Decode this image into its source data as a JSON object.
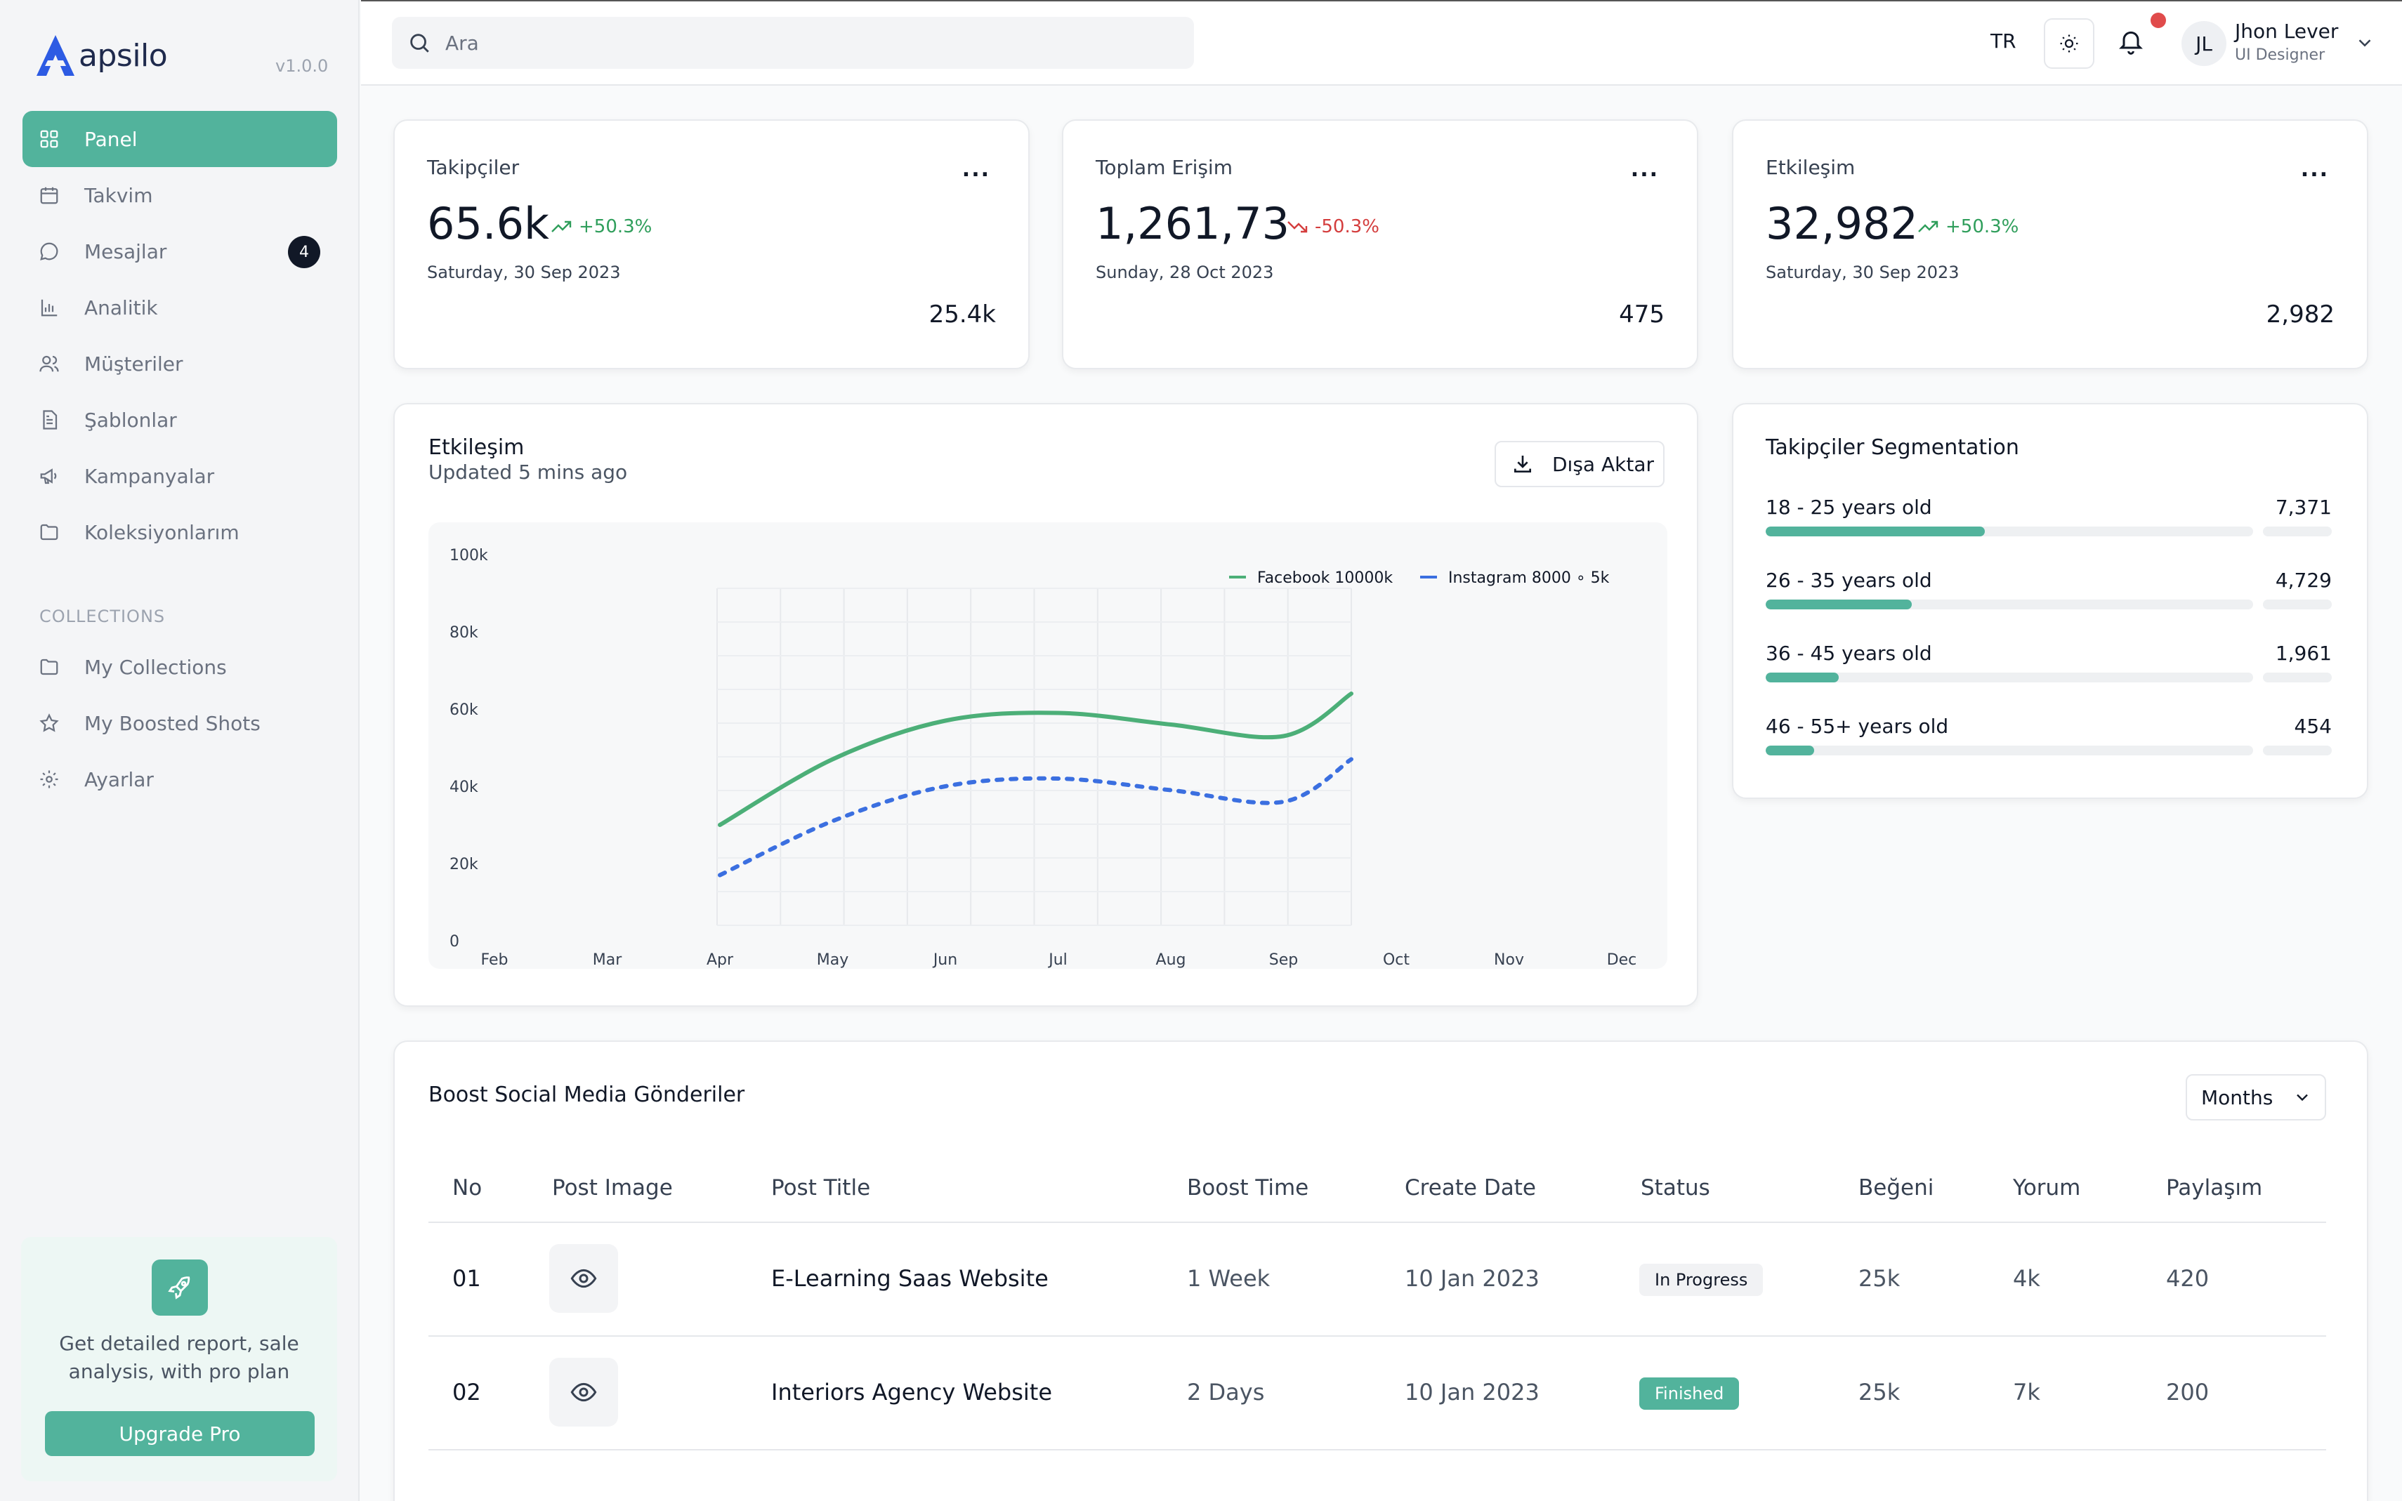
{
  "brand": {
    "name": "apsilo",
    "version": "v1.0.0",
    "accent": "#52b39c",
    "logo_color": "#2d5be3"
  },
  "sidebar": {
    "items": [
      {
        "label": "Panel",
        "icon": "grid-icon",
        "active": true
      },
      {
        "label": "Takvim",
        "icon": "calendar-icon"
      },
      {
        "label": "Mesajlar",
        "icon": "message-icon",
        "badge": "4"
      },
      {
        "label": "Analitik",
        "icon": "bar-chart-icon"
      },
      {
        "label": "Müşteriler",
        "icon": "users-icon"
      },
      {
        "label": "Şablonlar",
        "icon": "document-icon"
      },
      {
        "label": "Kampanyalar",
        "icon": "megaphone-icon"
      },
      {
        "label": "Koleksiyonlarım",
        "icon": "folder-icon"
      }
    ],
    "section_label": "COLLECTIONS",
    "collections": [
      {
        "label": "My Collections",
        "icon": "folder-icon"
      },
      {
        "label": "My Boosted Shots",
        "icon": "star-icon"
      },
      {
        "label": "Ayarlar",
        "icon": "gear-icon"
      }
    ],
    "promo": {
      "text": "Get detailed report, sale analysis, with pro plan",
      "button": "Upgrade Pro",
      "icon": "rocket-icon"
    }
  },
  "header": {
    "search_placeholder": "Ara",
    "language": "TR",
    "user": {
      "initials": "JL",
      "name": "Jhon Lever",
      "role": "UI Designer"
    }
  },
  "stats": [
    {
      "label": "Takipçiler",
      "more": "...",
      "value": "65.6k",
      "change": "+50.3%",
      "trend": "up",
      "date": "Saturday, 30 Sep 2023",
      "sub": "25.4k"
    },
    {
      "label": "Toplam Erişim",
      "more": "...",
      "value": "1,261,73",
      "change": "-50.3%",
      "trend": "down",
      "date": "Sunday, 28 Oct 2023",
      "sub": "475"
    },
    {
      "label": "Etkileşim",
      "more": "...",
      "value": "32,982",
      "change": "+50.3%",
      "trend": "up",
      "date": "Saturday, 30 Sep 2023",
      "sub": "2,982"
    }
  ],
  "engagement": {
    "title": "Etkileşim",
    "updated": "Updated 5 mins ago",
    "export_label": "Dışa Aktar"
  },
  "chart_data": {
    "type": "line",
    "x": [
      "Feb",
      "Mar",
      "Apr",
      "May",
      "Jun",
      "Jul",
      "Aug",
      "Sep",
      "Oct",
      "Nov",
      "Dec"
    ],
    "yticks": [
      "0",
      "20k",
      "40k",
      "60k",
      "80k",
      "100k"
    ],
    "ylim": [
      0,
      100000
    ],
    "legend_position": "top-right",
    "grid": true,
    "series": [
      {
        "name": "Facebook 10000k",
        "color": "#4caf78",
        "style": "solid",
        "points": [
          [
            "Apr",
            30000
          ],
          [
            "May",
            47000
          ],
          [
            "Jun",
            57000
          ],
          [
            "Jul",
            59000
          ],
          [
            "Aug",
            56000
          ],
          [
            "Sep",
            53000
          ],
          [
            "Oct",
            64000
          ]
        ]
      },
      {
        "name": "Instagram 8000 ∘ 5k",
        "color": "#3b6fe0",
        "style": "dotted",
        "points": [
          [
            "Apr",
            17000
          ],
          [
            "May",
            31000
          ],
          [
            "Jun",
            40000
          ],
          [
            "Jul",
            42000
          ],
          [
            "Aug",
            39000
          ],
          [
            "Sep",
            36000
          ],
          [
            "Oct",
            47000
          ]
        ]
      }
    ]
  },
  "segmentation": {
    "title": "Takipçiler Segmentation",
    "rows": [
      {
        "label": "18 - 25 years old",
        "value": "7,371",
        "fraction": 0.45
      },
      {
        "label": "26 - 35 years old",
        "value": "4,729",
        "fraction": 0.3
      },
      {
        "label": "36 - 45 years old",
        "value": "1,961",
        "fraction": 0.15
      },
      {
        "label": "46 - 55+ years old",
        "value": "454",
        "fraction": 0.1
      }
    ]
  },
  "posts": {
    "title": "Boost Social Media Gönderiler",
    "filter": "Months",
    "columns": [
      "No",
      "Post Image",
      "Post Title",
      "Boost Time",
      "Create Date",
      "Status",
      "Beğeni",
      "Yorum",
      "Paylaşım"
    ],
    "rows": [
      {
        "no": "01",
        "title": "E-Learning Saas Website",
        "boost": "1 Week",
        "date": "10 Jan 2023",
        "status": "In Progress",
        "status_kind": "progress",
        "likes": "25k",
        "comments": "4k",
        "shares": "420"
      },
      {
        "no": "02",
        "title": "Interiors Agency Website",
        "boost": "2 Days",
        "date": "10 Jan 2023",
        "status": "Finished",
        "status_kind": "finished",
        "likes": "25k",
        "comments": "7k",
        "shares": "200"
      }
    ]
  }
}
